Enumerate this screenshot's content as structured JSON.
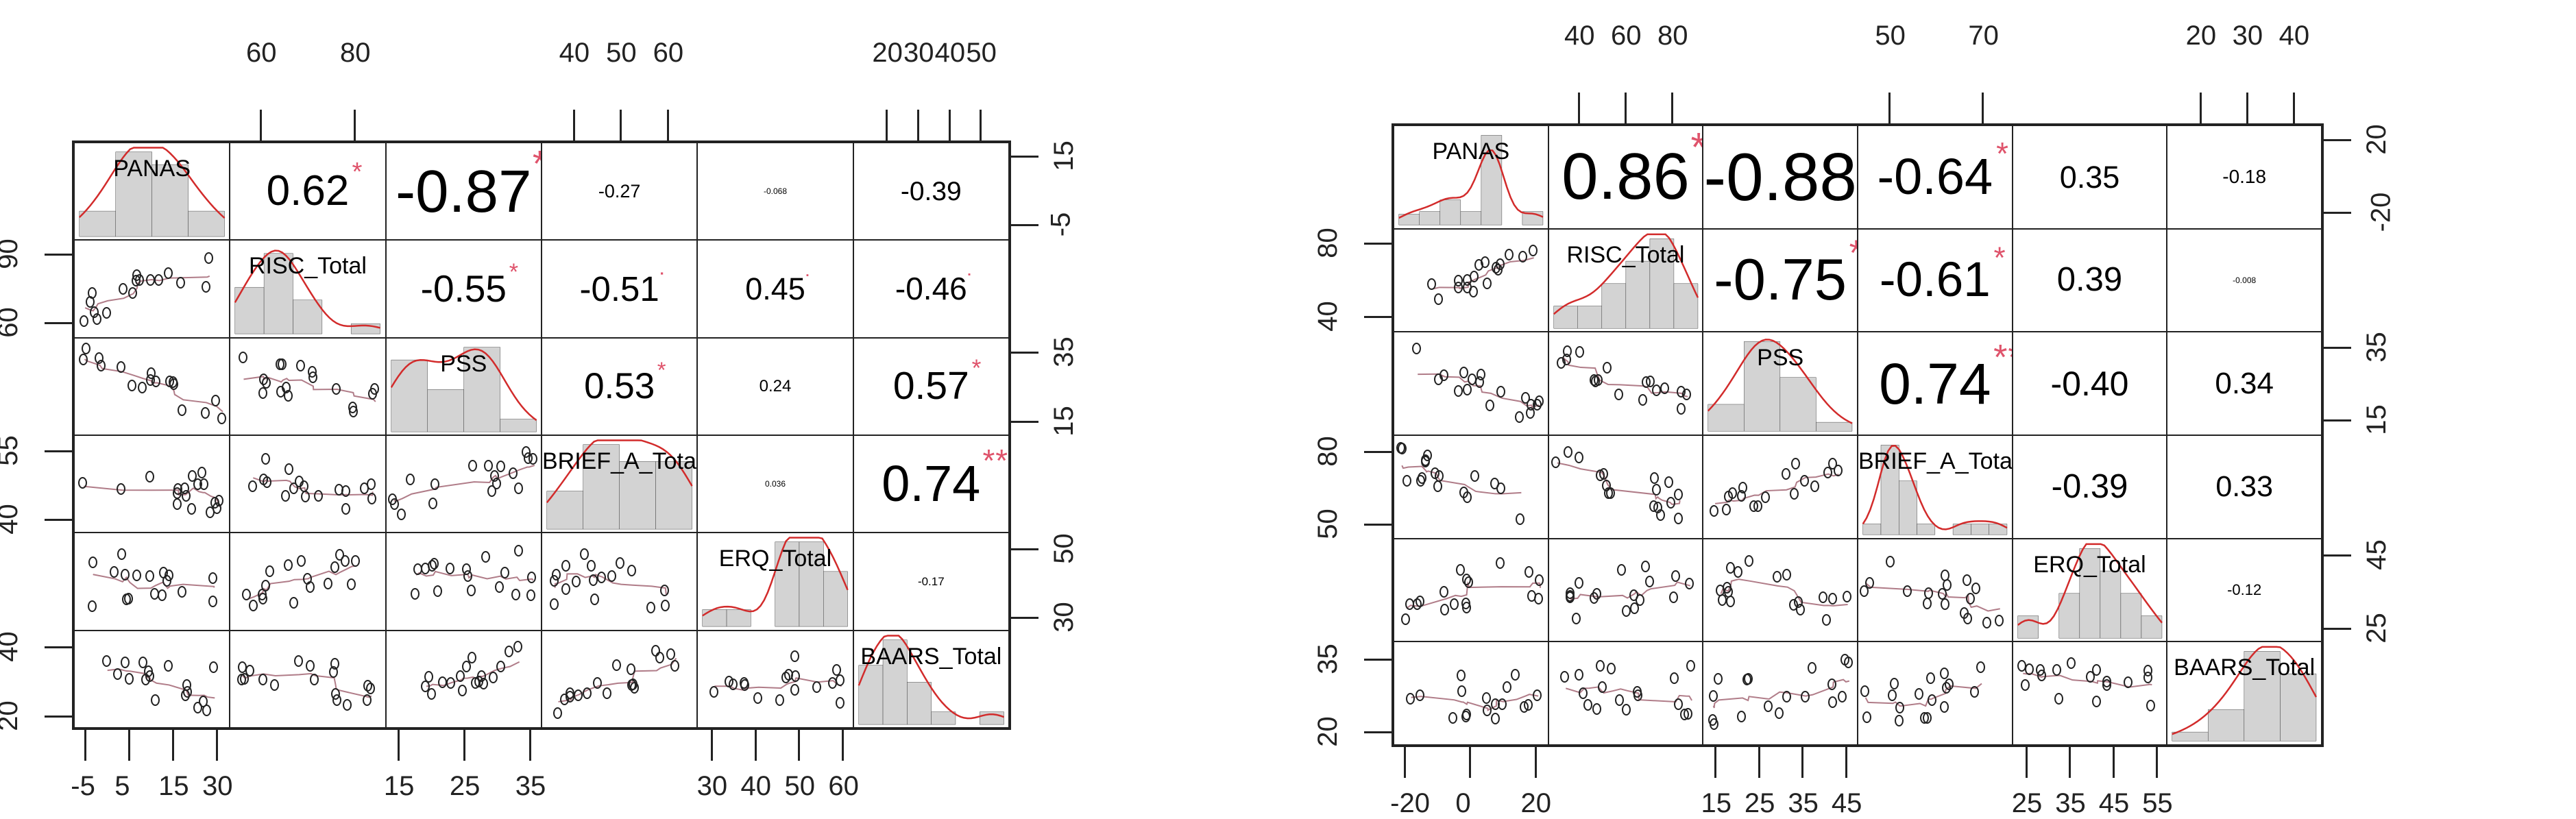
{
  "chart_data": [
    {
      "type": "scatter-matrix",
      "title": "",
      "variables": [
        "PANAS",
        "RISC_Total",
        "PSS",
        "BRIEF_A_Total",
        "ERQ_Total",
        "BAARS_Total"
      ],
      "correlations": {
        "PANAS": {
          "RISC_Total": {
            "r": "0.62",
            "sig": "*"
          },
          "PSS": {
            "r": "-0.87",
            "sig": "***"
          },
          "BRIEF_A_Total": {
            "r": "-0.27",
            "sig": ""
          },
          "ERQ_Total": {
            "r": "-0.068",
            "sig": ""
          },
          "BAARS_Total": {
            "r": "-0.39",
            "sig": ""
          }
        },
        "RISC_Total": {
          "PSS": {
            "r": "-0.55",
            "sig": "*"
          },
          "BRIEF_A_Total": {
            "r": "-0.51",
            "sig": "."
          },
          "ERQ_Total": {
            "r": "0.45",
            "sig": "."
          },
          "BAARS_Total": {
            "r": "-0.46",
            "sig": "."
          }
        },
        "PSS": {
          "BRIEF_A_Total": {
            "r": "0.53",
            "sig": "*"
          },
          "ERQ_Total": {
            "r": "0.24",
            "sig": ""
          },
          "BAARS_Total": {
            "r": "0.57",
            "sig": "*"
          }
        },
        "BRIEF_A_Total": {
          "ERQ_Total": {
            "r": "0.036",
            "sig": ""
          },
          "BAARS_Total": {
            "r": "0.74",
            "sig": "**"
          }
        },
        "ERQ_Total": {
          "BAARS_Total": {
            "r": "-0.17",
            "sig": ""
          }
        }
      },
      "axes": {
        "top": [
          {
            "col": 1,
            "ticks": [
              "60",
              "80"
            ]
          },
          {
            "col": 3,
            "ticks": [
              "40",
              "50",
              "60"
            ]
          },
          {
            "col": 5,
            "ticks": [
              "20",
              "30",
              "40",
              "50"
            ]
          }
        ],
        "bottom": [
          {
            "col": 0,
            "ticks": [
              "-5",
              "5",
              "15",
              "30"
            ]
          },
          {
            "col": 2,
            "ticks": [
              "15",
              "25",
              "35"
            ]
          },
          {
            "col": 4,
            "ticks": [
              "30",
              "40",
              "50",
              "60"
            ]
          }
        ],
        "left": [
          {
            "row": 1,
            "ticks": [
              "60",
              "90"
            ]
          },
          {
            "row": 3,
            "ticks": [
              "40",
              "55"
            ]
          },
          {
            "row": 5,
            "ticks": [
              "20",
              "40"
            ]
          }
        ],
        "right": [
          {
            "row": 0,
            "ticks": [
              "-5",
              "15"
            ]
          },
          {
            "row": 2,
            "ticks": [
              "15",
              "35"
            ]
          },
          {
            "row": 4,
            "ticks": [
              "30",
              "50"
            ]
          }
        ]
      },
      "histograms": {
        "PANAS": [
          0.3,
          1.0,
          0.85,
          0.3
        ],
        "RISC_Total": [
          0.55,
          0.95,
          0.4,
          0.0,
          0.12
        ],
        "PSS": [
          0.85,
          0.5,
          1.0,
          0.15
        ],
        "BRIEF_A_Total": [
          0.45,
          1.0,
          0.8,
          0.8
        ],
        "ERQ_Total": [
          0.2,
          0.2,
          0.0,
          1.0,
          1.0,
          0.65
        ],
        "BAARS_Total": [
          0.7,
          1.0,
          0.5,
          0.15,
          0.0,
          0.15
        ]
      }
    },
    {
      "type": "scatter-matrix",
      "title": "",
      "variables": [
        "PANAS",
        "RISC_Total",
        "PSS",
        "BRIEF_A_Total",
        "ERQ_Total",
        "BAARS_Total"
      ],
      "correlations": {
        "PANAS": {
          "RISC_Total": {
            "r": "0.86",
            "sig": "***"
          },
          "PSS": {
            "r": "-0.88",
            "sig": "***"
          },
          "BRIEF_A_Total": {
            "r": "-0.64",
            "sig": "*"
          },
          "ERQ_Total": {
            "r": "0.35",
            "sig": ""
          },
          "BAARS_Total": {
            "r": "-0.18",
            "sig": ""
          }
        },
        "RISC_Total": {
          "PSS": {
            "r": "-0.75",
            "sig": "**"
          },
          "BRIEF_A_Total": {
            "r": "-0.61",
            "sig": "*"
          },
          "ERQ_Total": {
            "r": "0.39",
            "sig": ""
          },
          "BAARS_Total": {
            "r": "-0.008",
            "sig": ""
          }
        },
        "PSS": {
          "BRIEF_A_Total": {
            "r": "0.74",
            "sig": "**"
          },
          "ERQ_Total": {
            "r": "-0.40",
            "sig": ""
          },
          "BAARS_Total": {
            "r": "0.34",
            "sig": ""
          }
        },
        "BRIEF_A_Total": {
          "ERQ_Total": {
            "r": "-0.39",
            "sig": ""
          },
          "BAARS_Total": {
            "r": "0.33",
            "sig": ""
          }
        },
        "ERQ_Total": {
          "BAARS_Total": {
            "r": "-0.12",
            "sig": ""
          }
        }
      },
      "axes": {
        "top": [
          {
            "col": 1,
            "ticks": [
              "40",
              "60",
              "80"
            ]
          },
          {
            "col": 3,
            "ticks": [
              "50",
              "70"
            ]
          },
          {
            "col": 5,
            "ticks": [
              "20",
              "30",
              "40"
            ]
          }
        ],
        "bottom": [
          {
            "col": 0,
            "ticks": [
              "-20",
              "0",
              "20"
            ]
          },
          {
            "col": 2,
            "ticks": [
              "15",
              "25",
              "35",
              "45"
            ]
          },
          {
            "col": 4,
            "ticks": [
              "25",
              "35",
              "45",
              "55"
            ]
          }
        ],
        "left": [
          {
            "row": 1,
            "ticks": [
              "40",
              "80"
            ]
          },
          {
            "row": 3,
            "ticks": [
              "50",
              "80"
            ]
          },
          {
            "row": 5,
            "ticks": [
              "20",
              "35"
            ]
          }
        ],
        "right": [
          {
            "row": 0,
            "ticks": [
              "-20",
              "20"
            ]
          },
          {
            "row": 2,
            "ticks": [
              "15",
              "35"
            ]
          },
          {
            "row": 4,
            "ticks": [
              "25",
              "45"
            ]
          }
        ]
      },
      "histograms": {
        "PANAS": [
          0.12,
          0.15,
          0.28,
          0.15,
          1.0,
          0.0,
          0.15
        ],
        "RISC_Total": [
          0.25,
          0.25,
          0.5,
          0.75,
          1.0,
          0.5
        ],
        "PSS": [
          0.3,
          1.0,
          0.6,
          0.1
        ],
        "BRIEF_A_Total": [
          0.12,
          1.0,
          0.6,
          0.12,
          0.0,
          0.12,
          0.12,
          0.12
        ],
        "ERQ_Total": [
          0.25,
          0.0,
          0.5,
          1.0,
          0.75,
          0.5,
          0.25
        ],
        "BAARS_Total": [
          0.1,
          0.35,
          1.0,
          0.75
        ]
      }
    }
  ],
  "colors": {
    "star": "#DF536B",
    "hist_fill": "#D3D3D3",
    "density": "#D22B2B",
    "smooth": "#B07C88"
  }
}
